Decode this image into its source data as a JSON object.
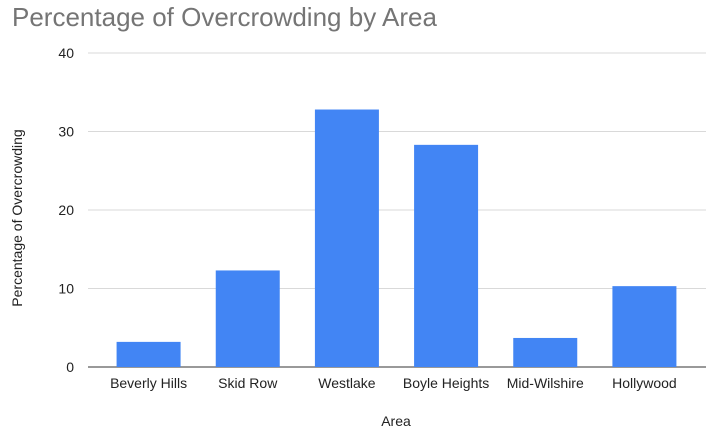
{
  "chart_data": {
    "type": "bar",
    "title": "Percentage of Overcrowding by Area",
    "xlabel": "Area",
    "ylabel": "Percentage of Overcrowding",
    "categories": [
      "Beverly Hills",
      "Skid Row",
      "Westlake",
      "Boyle Heights",
      "Mid-Wilshire",
      "Hollywood"
    ],
    "values": [
      3.2,
      12.3,
      32.8,
      28.3,
      3.7,
      10.3
    ],
    "ylim": [
      0,
      40
    ],
    "yticks": [
      0,
      10,
      20,
      30,
      40
    ],
    "grid": true,
    "legend": "none",
    "colors": {
      "bar": "#4285f4",
      "grid": "#d9d9d9",
      "title": "#757575",
      "text": "#222222"
    }
  }
}
